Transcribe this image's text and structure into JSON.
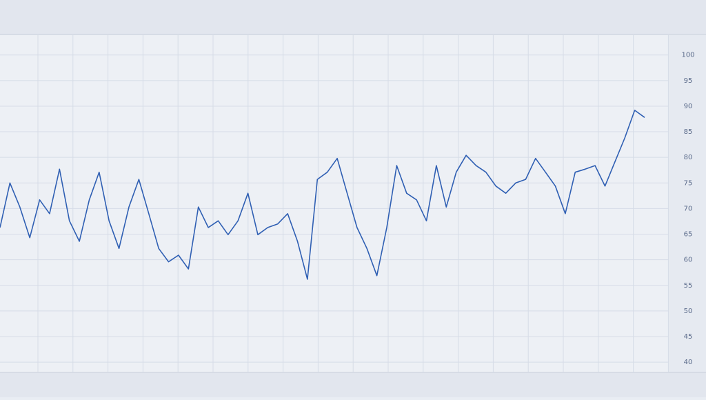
{
  "chart_data": {
    "type": "line",
    "series": [
      {
        "color": "#2f5fb3",
        "values": [
          66.3,
          75.0,
          70.3,
          64.3,
          71.7,
          69.0,
          77.7,
          67.6,
          63.6,
          71.7,
          77.1,
          67.6,
          62.2,
          70.3,
          75.7,
          69.0,
          62.2,
          59.6,
          60.9,
          58.2,
          70.3,
          66.3,
          67.6,
          64.9,
          67.6,
          73.0,
          64.9,
          66.3,
          67.0,
          69.0,
          63.6,
          56.2,
          75.7,
          77.1,
          79.8,
          73.0,
          66.3,
          62.2,
          56.9,
          66.3,
          78.4,
          73.0,
          71.7,
          67.6,
          78.4,
          70.3,
          77.1,
          80.4,
          78.4,
          77.1,
          74.4,
          73.0,
          75.0,
          75.7,
          79.8,
          77.1,
          74.4,
          69.0,
          77.1,
          77.7,
          78.4,
          74.4,
          79.1,
          83.8,
          89.2,
          87.8
        ]
      }
    ],
    "ylim": [
      38,
      104
    ],
    "yticks": [
      40,
      45,
      50,
      55,
      60,
      65,
      70,
      75,
      80,
      85,
      90,
      95,
      100
    ],
    "grid": true
  }
}
